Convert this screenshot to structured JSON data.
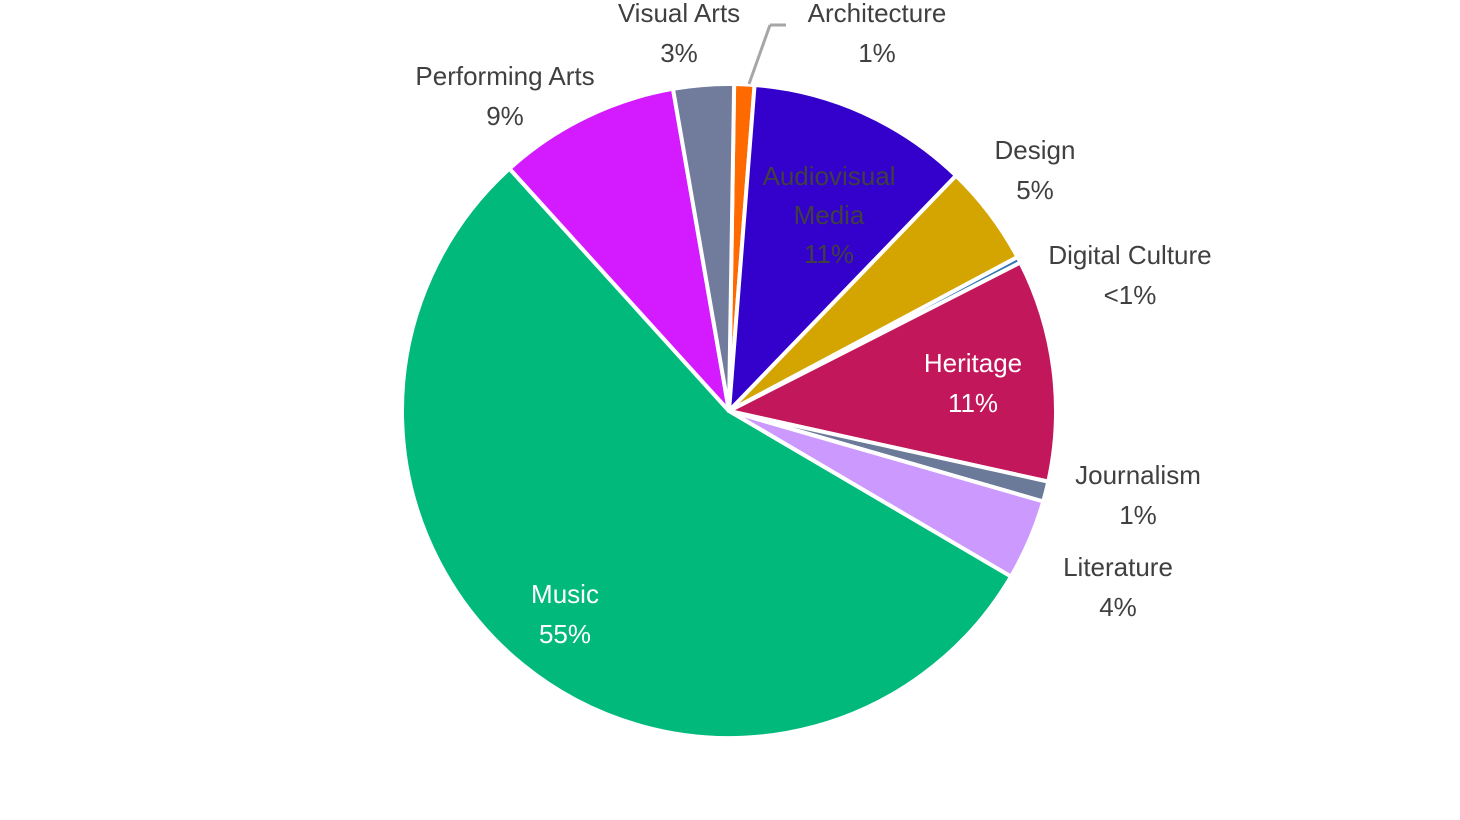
{
  "chart_data": {
    "type": "pie",
    "categories": [
      "Architecture",
      "Audiovisual Media",
      "Design",
      "Digital Culture",
      "Heritage",
      "Journalism",
      "Literature",
      "Music",
      "Performing Arts",
      "Visual Arts"
    ],
    "values": [
      1,
      11,
      5,
      0.3,
      11,
      1,
      4,
      55,
      9,
      3
    ],
    "value_labels": [
      "1%",
      "11%",
      "5%",
      "<1%",
      "11%",
      "1%",
      "4%",
      "55%",
      "9%",
      "3%"
    ],
    "colors": [
      "#ff6a00",
      "#3300cc",
      "#d4a500",
      "#2e75b6",
      "#c2185b",
      "#6b7a99",
      "#cc99ff",
      "#00b97a",
      "#d41aff",
      "#717b9b"
    ]
  }
}
